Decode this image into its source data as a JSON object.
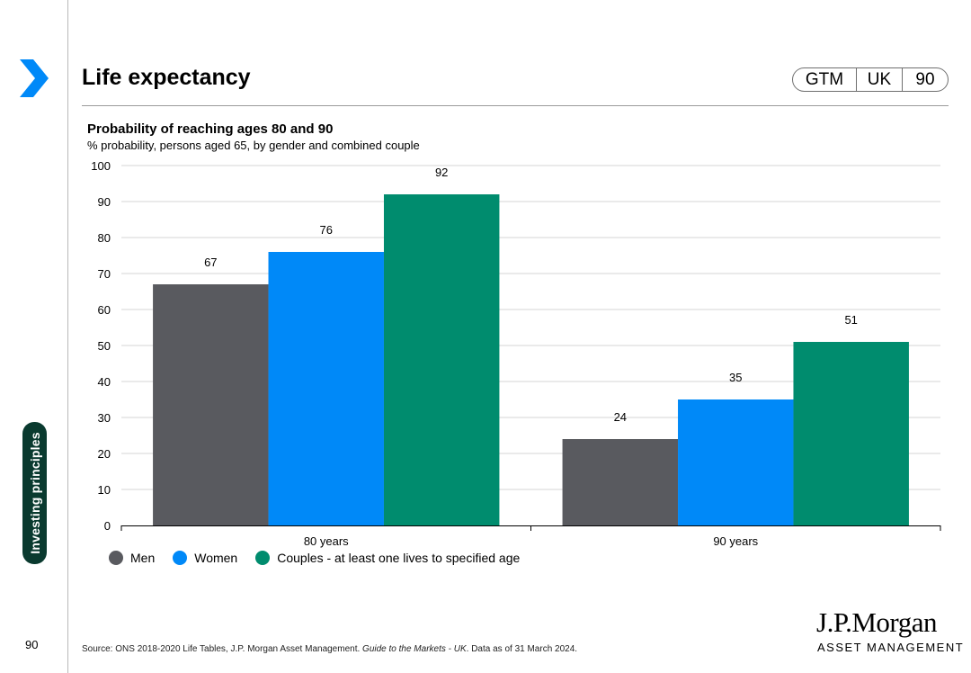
{
  "header": {
    "title": "Life expectancy",
    "tags": [
      "GTM",
      "UK",
      "90"
    ]
  },
  "chart_header": {
    "title": "Probability of reaching ages 80 and 90",
    "subtitle": "% probability, persons aged 65, by gender and combined couple"
  },
  "chart_data": {
    "type": "bar",
    "title": "Probability of reaching ages 80 and 90",
    "subtitle": "% probability, persons aged 65, by gender and combined couple",
    "categories": [
      "80 years",
      "90 years"
    ],
    "series": [
      {
        "name": "Men",
        "color": "#595a5f",
        "values": [
          67,
          24
        ]
      },
      {
        "name": "Women",
        "color": "#0089f8",
        "values": [
          76,
          35
        ]
      },
      {
        "name": "Couples - at least one lives to specified age",
        "color": "#008c6e",
        "values": [
          92,
          51
        ]
      }
    ],
    "ylim": [
      0,
      100
    ],
    "yticks": [
      0,
      10,
      20,
      30,
      40,
      50,
      60,
      70,
      80,
      90,
      100
    ],
    "grid": true,
    "legend_position": "bottom-left",
    "xlabel": "",
    "ylabel": ""
  },
  "sidebar": {
    "section_label": "Investing principles"
  },
  "footer": {
    "page_number": "90",
    "source_prefix": "Source: ONS 2018-2020 Life Tables, J.P. Morgan Asset Management. ",
    "source_italic": "Guide to the Markets - UK",
    "source_suffix": ". Data as of 31 March 2024."
  },
  "logo": {
    "name": "J.P.Morgan",
    "sub": "ASSET MANAGEMENT"
  },
  "colors": {
    "accent_arrow": "#0089f8",
    "sidebar_bg": "#0a3a2f"
  }
}
